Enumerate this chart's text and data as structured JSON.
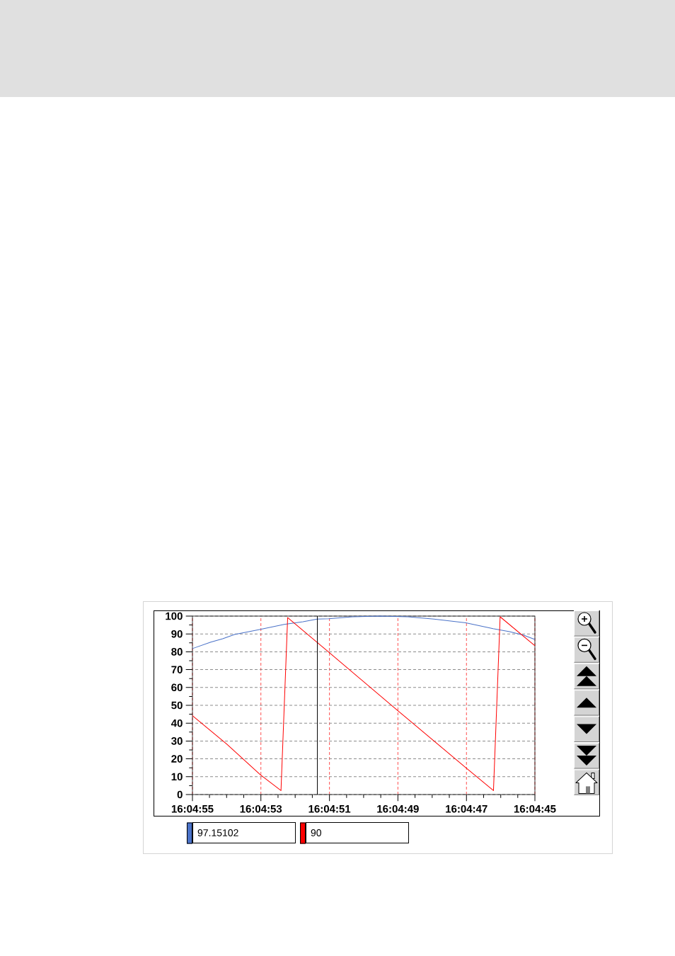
{
  "chart_data": {
    "type": "line",
    "series": [
      {
        "name": "97.15102",
        "color": "#4a72c8",
        "x": [
          16.081944,
          16.081795,
          16.081699,
          16.081603,
          16.081393,
          16.081201,
          16.081048,
          16.080933,
          16.080839,
          16.080646,
          16.080424,
          16.080196,
          16.079985,
          16.079727,
          16.079506,
          16.079372,
          16.079258,
          16.079167
        ],
        "values": [
          81.8,
          85.4,
          87.3,
          89.7,
          92.6,
          95.3,
          96.8,
          98.3,
          98.5,
          99.6,
          100,
          99.6,
          98.3,
          96.2,
          93.0,
          91.3,
          89.3,
          86.9
        ]
      },
      {
        "name": "90",
        "color": "#ff0000",
        "x": [
          16.081944,
          16.081665,
          16.081393,
          16.081226,
          16.081172,
          16.080839,
          16.08028,
          16.079727,
          16.079503,
          16.079449,
          16.079167
        ],
        "values": [
          44.2,
          28.2,
          11.1,
          2.2,
          99.2,
          79.8,
          47.1,
          15.0,
          2.2,
          99.6,
          83.4
        ]
      }
    ],
    "xlim": [
      16.081944,
      16.079167
    ],
    "xticks": [
      {
        "value": 16.081944,
        "label": "16:04:55"
      },
      {
        "value": 16.081806,
        "label": null
      },
      {
        "value": 16.081667,
        "label": null
      },
      {
        "value": 16.081528,
        "label": null
      },
      {
        "value": 16.081389,
        "label": "16:04:53"
      },
      {
        "value": 16.08125,
        "label": null
      },
      {
        "value": 16.081111,
        "label": null
      },
      {
        "value": 16.080972,
        "label": null
      },
      {
        "value": 16.080833,
        "label": "16:04:51"
      },
      {
        "value": 16.080694,
        "label": null
      },
      {
        "value": 16.080556,
        "label": null
      },
      {
        "value": 16.080417,
        "label": null
      },
      {
        "value": 16.080278,
        "label": "16:04:49"
      },
      {
        "value": 16.080139,
        "label": null
      },
      {
        "value": 16.08,
        "label": null
      },
      {
        "value": 16.079861,
        "label": null
      },
      {
        "value": 16.079722,
        "label": "16:04:47"
      },
      {
        "value": 16.079583,
        "label": null
      },
      {
        "value": 16.079444,
        "label": null
      },
      {
        "value": 16.079306,
        "label": null
      },
      {
        "value": 16.079167,
        "label": "16:04:45"
      }
    ],
    "ylim": [
      0,
      100
    ],
    "yticks": [
      0,
      {
        "value": 5,
        "label": null
      },
      10,
      {
        "value": 15,
        "label": null
      },
      20,
      {
        "value": 25,
        "label": null
      },
      30,
      {
        "value": 35,
        "label": null
      },
      40,
      {
        "value": 45,
        "label": null
      },
      50,
      {
        "value": 55,
        "label": null
      },
      60,
      {
        "value": 65,
        "label": null
      },
      70,
      {
        "value": 75,
        "label": null
      },
      80,
      {
        "value": 85,
        "label": null
      },
      90,
      {
        "value": 95,
        "label": null
      },
      100
    ],
    "grid": true,
    "legend": "bottom",
    "ref_lines": [
      {
        "axis": "x",
        "value": 16.080931,
        "color": "#000000"
      }
    ]
  }
}
